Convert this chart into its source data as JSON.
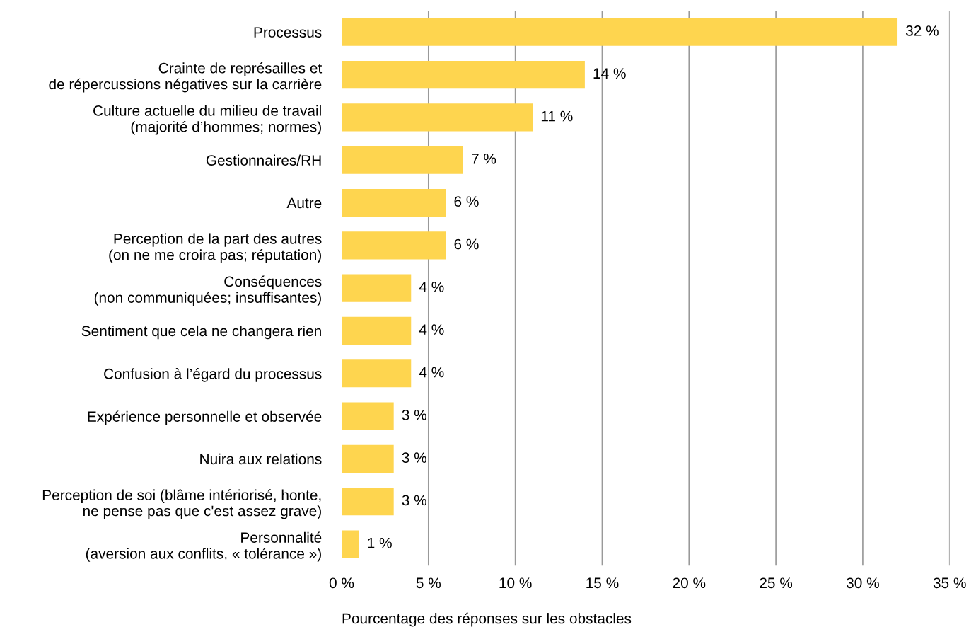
{
  "chart_data": {
    "type": "bar",
    "orientation": "horizontal",
    "xlabel": "Pourcentage des réponses sur les obstacles",
    "categories": [
      "Processus",
      "Crainte de représailles et\nde répercussions négatives sur la carrière",
      "Culture actuelle du milieu de travail\n(majorité d’hommes; normes)",
      "Gestionnaires/RH",
      "Autre",
      "Perception de la part des autres\n(on ne me croira pas; réputation)",
      "Conséquences\n(non communiquées; insuffisantes)",
      "Sentiment que cela ne changera rien",
      "Confusion à l’égard du processus",
      "Expérience personnelle et observée",
      "Nuira aux relations",
      "Perception de soi (blâme intériorisé, honte,\nne pense pas que c'est assez grave)",
      "Personnalité\n(aversion aux conflits, « tolérance »)"
    ],
    "values": [
      32,
      14,
      11,
      7,
      6,
      6,
      4,
      4,
      4,
      3,
      3,
      3,
      1
    ],
    "value_labels": [
      "32 %",
      "14 %",
      "11 %",
      "7 %",
      "6 %",
      "6 %",
      "4 %",
      "4 %",
      "4 %",
      "3 %",
      "3 %",
      "3 %",
      "1 %"
    ],
    "color": "#fed54f",
    "xlim": [
      0,
      35
    ],
    "xticks": [
      {
        "value": 0,
        "label": "0 %"
      },
      {
        "value": 5,
        "label": "5 %"
      },
      {
        "value": 10,
        "label": "10 %"
      },
      {
        "value": 15,
        "label": "15 %"
      },
      {
        "value": 20,
        "label": "20 %"
      },
      {
        "value": 25,
        "label": "25 %"
      },
      {
        "value": 30,
        "label": "30 %"
      },
      {
        "value": 35,
        "label": "35 %"
      }
    ],
    "grid": "x",
    "legend": false
  }
}
